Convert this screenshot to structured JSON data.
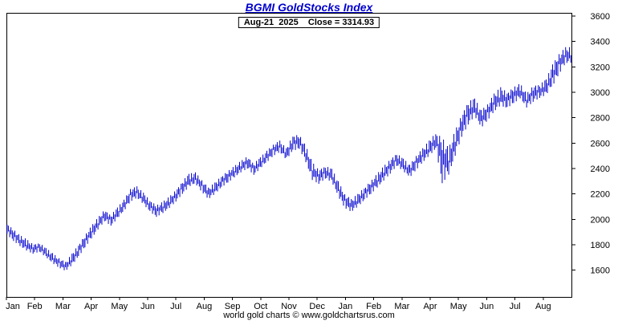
{
  "title": "BGMI GoldStocks Index",
  "subtitle": "Aug-21  2025    Close = 3314.93",
  "footer": "world gold charts © www.goldchartsrus.com",
  "colors": {
    "title": "#0000cc",
    "bars": "#0000cc",
    "axis": "#000000",
    "background": "#ffffff"
  },
  "chart_data": {
    "type": "bar",
    "subtype": "daily high-low price bars (OHLC style)",
    "title": "BGMI GoldStocks Index",
    "xlabel": "",
    "ylabel": "",
    "x_tick_labels": [
      "Jan",
      "Feb",
      "Mar",
      "Apr",
      "May",
      "Jun",
      "Jul",
      "Aug",
      "Sep",
      "Oct",
      "Nov",
      "Dec",
      "Jan",
      "Feb",
      "Mar",
      "Apr",
      "May",
      "Jun",
      "Jul",
      "Aug"
    ],
    "yticks": [
      1600,
      1800,
      2000,
      2200,
      2400,
      2600,
      2800,
      3000,
      3200,
      3400,
      3600
    ],
    "ylim": [
      1390,
      3625
    ],
    "grid": false,
    "legend": false,
    "last_date": "Aug-21 2025",
    "last_close": 3314.93,
    "weekly_hilo": [
      [
        1880,
        1965
      ],
      [
        1830,
        1920
      ],
      [
        1790,
        1875
      ],
      [
        1755,
        1845
      ],
      [
        1730,
        1805
      ],
      [
        1745,
        1815
      ],
      [
        1700,
        1775
      ],
      [
        1655,
        1735
      ],
      [
        1620,
        1695
      ],
      [
        1595,
        1665
      ],
      [
        1640,
        1730
      ],
      [
        1705,
        1800
      ],
      [
        1780,
        1875
      ],
      [
        1850,
        1950
      ],
      [
        1920,
        2015
      ],
      [
        1985,
        2075
      ],
      [
        1950,
        2035
      ],
      [
        2005,
        2095
      ],
      [
        2065,
        2155
      ],
      [
        2140,
        2240
      ],
      [
        2170,
        2260
      ],
      [
        2120,
        2210
      ],
      [
        2060,
        2150
      ],
      [
        2020,
        2110
      ],
      [
        2050,
        2140
      ],
      [
        2090,
        2180
      ],
      [
        2140,
        2230
      ],
      [
        2200,
        2300
      ],
      [
        2255,
        2360
      ],
      [
        2280,
        2370
      ],
      [
        2215,
        2310
      ],
      [
        2160,
        2250
      ],
      [
        2200,
        2290
      ],
      [
        2250,
        2340
      ],
      [
        2290,
        2380
      ],
      [
        2330,
        2420
      ],
      [
        2370,
        2460
      ],
      [
        2400,
        2495
      ],
      [
        2350,
        2440
      ],
      [
        2400,
        2490
      ],
      [
        2450,
        2540
      ],
      [
        2500,
        2590
      ],
      [
        2530,
        2620
      ],
      [
        2470,
        2560
      ],
      [
        2540,
        2660
      ],
      [
        2555,
        2665
      ],
      [
        2450,
        2580
      ],
      [
        2310,
        2450
      ],
      [
        2280,
        2390
      ],
      [
        2320,
        2420
      ],
      [
        2295,
        2400
      ],
      [
        2180,
        2300
      ],
      [
        2090,
        2200
      ],
      [
        2060,
        2160
      ],
      [
        2100,
        2200
      ],
      [
        2150,
        2250
      ],
      [
        2200,
        2300
      ],
      [
        2250,
        2360
      ],
      [
        2305,
        2420
      ],
      [
        2360,
        2470
      ],
      [
        2420,
        2520
      ],
      [
        2380,
        2480
      ],
      [
        2330,
        2430
      ],
      [
        2390,
        2500
      ],
      [
        2450,
        2560
      ],
      [
        2500,
        2620
      ],
      [
        2555,
        2680
      ],
      [
        2285,
        2645
      ],
      [
        2350,
        2560
      ],
      [
        2500,
        2700
      ],
      [
        2650,
        2820
      ],
      [
        2745,
        2925
      ],
      [
        2815,
        2955
      ],
      [
        2720,
        2860
      ],
      [
        2780,
        2905
      ],
      [
        2850,
        2990
      ],
      [
        2895,
        3040
      ],
      [
        2875,
        3000
      ],
      [
        2915,
        3040
      ],
      [
        2950,
        3070
      ],
      [
        2880,
        2990
      ],
      [
        2925,
        3050
      ],
      [
        2955,
        3060
      ],
      [
        2980,
        3105
      ],
      [
        3050,
        3220
      ],
      [
        3145,
        3300
      ],
      [
        3230,
        3355
      ]
    ]
  }
}
